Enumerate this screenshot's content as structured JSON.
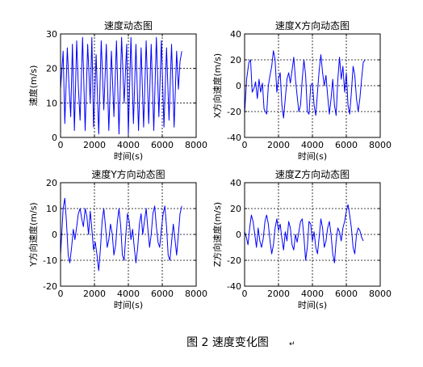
{
  "figure_caption": "图 2  速度变化图",
  "caption_mark": "↵",
  "line_color": "#0000ff",
  "chart_data": [
    {
      "type": "line",
      "title": "速度动态图",
      "xlabel": "时间(s)",
      "ylabel": "速度(m/s)",
      "xlim": [
        0,
        8000
      ],
      "ylim": [
        0,
        30
      ],
      "xticks": [
        0,
        2000,
        4000,
        6000,
        8000
      ],
      "yticks": [
        0,
        10,
        20,
        30
      ],
      "grid": true,
      "series": [
        {
          "values": [
            [
              0,
              14
            ],
            [
              150,
              25
            ],
            [
              250,
              4
            ],
            [
              400,
              26
            ],
            [
              500,
              15
            ],
            [
              600,
              6
            ],
            [
              700,
              27
            ],
            [
              820,
              2
            ],
            [
              950,
              28
            ],
            [
              1050,
              15
            ],
            [
              1150,
              5
            ],
            [
              1300,
              29
            ],
            [
              1450,
              2
            ],
            [
              1600,
              27
            ],
            [
              1750,
              10
            ],
            [
              1850,
              29
            ],
            [
              1950,
              3
            ],
            [
              2100,
              24
            ],
            [
              2250,
              1
            ],
            [
              2400,
              28
            ],
            [
              2550,
              8
            ],
            [
              2700,
              27
            ],
            [
              2850,
              2
            ],
            [
              3000,
              25
            ],
            [
              3150,
              6
            ],
            [
              3300,
              28
            ],
            [
              3450,
              1
            ],
            [
              3600,
              29
            ],
            [
              3750,
              10
            ],
            [
              3900,
              27
            ],
            [
              4000,
              1
            ],
            [
              4150,
              29
            ],
            [
              4300,
              4
            ],
            [
              4450,
              27
            ],
            [
              4600,
              2
            ],
            [
              4750,
              26
            ],
            [
              4900,
              3
            ],
            [
              5050,
              28
            ],
            [
              5200,
              4
            ],
            [
              5350,
              27
            ],
            [
              5500,
              2
            ],
            [
              5650,
              29
            ],
            [
              5800,
              6
            ],
            [
              5950,
              28
            ],
            [
              6100,
              3
            ],
            [
              6250,
              26
            ],
            [
              6400,
              5
            ],
            [
              6550,
              27
            ],
            [
              6700,
              3
            ],
            [
              6850,
              25
            ],
            [
              6950,
              14
            ],
            [
              7050,
              22
            ],
            [
              7150,
              25
            ]
          ]
        }
      ]
    },
    {
      "type": "line",
      "title": "速度X方向动态图",
      "xlabel": "时间(s)",
      "ylabel": "X方向速度(m/s)",
      "xlim": [
        0,
        8000
      ],
      "ylim": [
        -40,
        40
      ],
      "xticks": [
        0,
        2000,
        4000,
        6000,
        8000
      ],
      "yticks": [
        -40,
        -20,
        0,
        20,
        40
      ],
      "grid": true,
      "series": [
        {
          "values": [
            [
              0,
              -22
            ],
            [
              120,
              5
            ],
            [
              250,
              18
            ],
            [
              350,
              20
            ],
            [
              450,
              -5
            ],
            [
              550,
              -2
            ],
            [
              650,
              3
            ],
            [
              750,
              -10
            ],
            [
              850,
              5
            ],
            [
              950,
              -5
            ],
            [
              1050,
              2
            ],
            [
              1150,
              -18
            ],
            [
              1300,
              -22
            ],
            [
              1400,
              0
            ],
            [
              1500,
              8
            ],
            [
              1600,
              15
            ],
            [
              1700,
              27
            ],
            [
              1800,
              20
            ],
            [
              1900,
              -5
            ],
            [
              2000,
              5
            ],
            [
              2100,
              10
            ],
            [
              2200,
              -15
            ],
            [
              2300,
              -25
            ],
            [
              2400,
              -10
            ],
            [
              2500,
              5
            ],
            [
              2600,
              10
            ],
            [
              2700,
              2
            ],
            [
              2800,
              12
            ],
            [
              2900,
              22
            ],
            [
              3000,
              5
            ],
            [
              3100,
              -8
            ],
            [
              3200,
              -20
            ],
            [
              3300,
              -15
            ],
            [
              3400,
              5
            ],
            [
              3500,
              20
            ],
            [
              3600,
              8
            ],
            [
              3700,
              -20
            ],
            [
              3800,
              -22
            ],
            [
              3900,
              0
            ],
            [
              4000,
              2
            ],
            [
              4100,
              -15
            ],
            [
              4200,
              -23
            ],
            [
              4300,
              -5
            ],
            [
              4400,
              12
            ],
            [
              4500,
              24
            ],
            [
              4600,
              10
            ],
            [
              4700,
              0
            ],
            [
              4800,
              8
            ],
            [
              4900,
              -8
            ],
            [
              5000,
              -22
            ],
            [
              5100,
              -10
            ],
            [
              5200,
              5
            ],
            [
              5300,
              -15
            ],
            [
              5400,
              -23
            ],
            [
              5500,
              5
            ],
            [
              5600,
              22
            ],
            [
              5700,
              5
            ],
            [
              5800,
              15
            ],
            [
              5900,
              -5
            ],
            [
              6000,
              10
            ],
            [
              6100,
              -15
            ],
            [
              6200,
              -22
            ],
            [
              6300,
              -5
            ],
            [
              6400,
              15
            ],
            [
              6500,
              8
            ],
            [
              6600,
              -10
            ],
            [
              6700,
              -20
            ],
            [
              6800,
              -10
            ],
            [
              6900,
              5
            ],
            [
              7000,
              18
            ],
            [
              7100,
              20
            ]
          ]
        }
      ]
    },
    {
      "type": "line",
      "title": "速度Y方向动态图",
      "xlabel": "时间(s)",
      "ylabel": "Y方向速度(m/s)",
      "xlim": [
        0,
        8000
      ],
      "ylim": [
        -20,
        20
      ],
      "xticks": [
        0,
        2000,
        4000,
        6000,
        8000
      ],
      "yticks": [
        -20,
        -10,
        0,
        10,
        20
      ],
      "grid": true,
      "series": [
        {
          "values": [
            [
              0,
              -8
            ],
            [
              150,
              10
            ],
            [
              250,
              14
            ],
            [
              350,
              5
            ],
            [
              450,
              -8
            ],
            [
              550,
              -11
            ],
            [
              650,
              -5
            ],
            [
              750,
              2
            ],
            [
              850,
              -2
            ],
            [
              950,
              3
            ],
            [
              1050,
              8
            ],
            [
              1150,
              10
            ],
            [
              1250,
              6
            ],
            [
              1350,
              3
            ],
            [
              1450,
              10
            ],
            [
              1550,
              7
            ],
            [
              1650,
              0
            ],
            [
              1750,
              9
            ],
            [
              1850,
              2
            ],
            [
              1950,
              -6
            ],
            [
              2050,
              -3
            ],
            [
              2150,
              -8
            ],
            [
              2250,
              -14
            ],
            [
              2350,
              -6
            ],
            [
              2450,
              5
            ],
            [
              2550,
              10
            ],
            [
              2650,
              3
            ],
            [
              2750,
              -5
            ],
            [
              2850,
              -2
            ],
            [
              2950,
              4
            ],
            [
              3050,
              0
            ],
            [
              3150,
              -8
            ],
            [
              3250,
              -4
            ],
            [
              3350,
              5
            ],
            [
              3450,
              10
            ],
            [
              3550,
              3
            ],
            [
              3650,
              -8
            ],
            [
              3750,
              -10
            ],
            [
              3850,
              0
            ],
            [
              3950,
              8
            ],
            [
              4050,
              5
            ],
            [
              4150,
              -2
            ],
            [
              4250,
              2
            ],
            [
              4350,
              -5
            ],
            [
              4450,
              -11
            ],
            [
              4550,
              -5
            ],
            [
              4650,
              4
            ],
            [
              4750,
              8
            ],
            [
              4850,
              0
            ],
            [
              4950,
              5
            ],
            [
              5050,
              10
            ],
            [
              5150,
              2
            ],
            [
              5250,
              -5
            ],
            [
              5350,
              0
            ],
            [
              5450,
              8
            ],
            [
              5550,
              11
            ],
            [
              5650,
              3
            ],
            [
              5750,
              -3
            ],
            [
              5850,
              -5
            ],
            [
              5950,
              2
            ],
            [
              6050,
              8
            ],
            [
              6150,
              11
            ],
            [
              6250,
              3
            ],
            [
              6350,
              -8
            ],
            [
              6450,
              -10
            ],
            [
              6550,
              -3
            ],
            [
              6650,
              4
            ],
            [
              6750,
              -2
            ],
            [
              6850,
              -8
            ],
            [
              6950,
              0
            ],
            [
              7050,
              8
            ],
            [
              7150,
              11
            ]
          ]
        }
      ]
    },
    {
      "type": "line",
      "title": "速度Z方向动态图",
      "xlabel": "时间(s)",
      "ylabel": "Z方向速度(m/s)",
      "xlim": [
        0,
        8000
      ],
      "ylim": [
        -40,
        40
      ],
      "xticks": [
        0,
        2000,
        4000,
        6000,
        8000
      ],
      "yticks": [
        -40,
        -20,
        0,
        20,
        40
      ],
      "grid": true,
      "series": [
        {
          "values": [
            [
              0,
              2
            ],
            [
              100,
              -2
            ],
            [
              200,
              -8
            ],
            [
              300,
              5
            ],
            [
              400,
              15
            ],
            [
              500,
              10
            ],
            [
              600,
              0
            ],
            [
              700,
              -10
            ],
            [
              800,
              5
            ],
            [
              900,
              -5
            ],
            [
              1000,
              -10
            ],
            [
              1100,
              -3
            ],
            [
              1200,
              10
            ],
            [
              1300,
              15
            ],
            [
              1400,
              8
            ],
            [
              1500,
              -5
            ],
            [
              1600,
              -15
            ],
            [
              1700,
              -8
            ],
            [
              1800,
              5
            ],
            [
              1900,
              12
            ],
            [
              2000,
              3
            ],
            [
              2100,
              8
            ],
            [
              2200,
              -3
            ],
            [
              2300,
              -12
            ],
            [
              2400,
              2
            ],
            [
              2500,
              -5
            ],
            [
              2600,
              10
            ],
            [
              2700,
              5
            ],
            [
              2800,
              -8
            ],
            [
              2900,
              -12
            ],
            [
              3000,
              0
            ],
            [
              3100,
              -6
            ],
            [
              3200,
              2
            ],
            [
              3300,
              10
            ],
            [
              3400,
              12
            ],
            [
              3500,
              -2
            ],
            [
              3600,
              -20
            ],
            [
              3700,
              -10
            ],
            [
              3800,
              10
            ],
            [
              3900,
              8
            ],
            [
              4000,
              -5
            ],
            [
              4100,
              2
            ],
            [
              4200,
              -10
            ],
            [
              4300,
              -15
            ],
            [
              4400,
              -2
            ],
            [
              4500,
              12
            ],
            [
              4600,
              5
            ],
            [
              4700,
              -10
            ],
            [
              4800,
              -5
            ],
            [
              4900,
              5
            ],
            [
              5000,
              10
            ],
            [
              5100,
              0
            ],
            [
              5200,
              -15
            ],
            [
              5300,
              -22
            ],
            [
              5400,
              -5
            ],
            [
              5500,
              5
            ],
            [
              5600,
              2
            ],
            [
              5700,
              -5
            ],
            [
              5800,
              5
            ],
            [
              5900,
              10
            ],
            [
              6000,
              18
            ],
            [
              6100,
              23
            ],
            [
              6200,
              15
            ],
            [
              6300,
              5
            ],
            [
              6400,
              -10
            ],
            [
              6500,
              -15
            ],
            [
              6600,
              0
            ],
            [
              6700,
              5
            ],
            [
              6800,
              3
            ],
            [
              6900,
              -2
            ],
            [
              7000,
              -5
            ]
          ]
        }
      ]
    }
  ]
}
